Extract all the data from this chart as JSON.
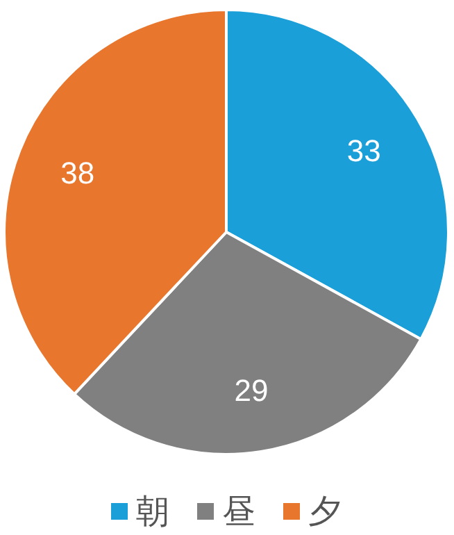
{
  "chart_data": {
    "type": "pie",
    "categories": [
      "朝",
      "昼",
      "夕"
    ],
    "values": [
      33,
      29,
      38
    ],
    "colors": [
      "#1a9fd9",
      "#808080",
      "#e8762d"
    ],
    "data_labels": true,
    "legend": "bottom"
  }
}
